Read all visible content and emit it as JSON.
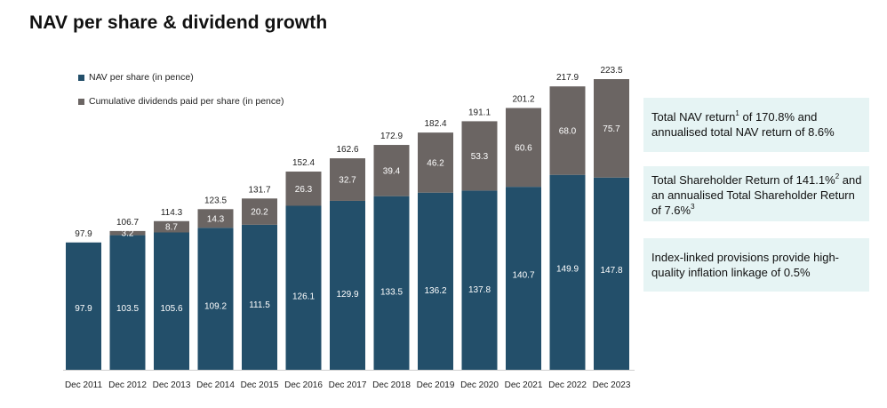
{
  "title": "NAV per share & dividend growth",
  "legend": {
    "nav": "NAV per share (in pence)",
    "dividends": "Cumulative dividends paid per share (in pence)"
  },
  "colors": {
    "nav": "#234f6a",
    "dividends": "#6b6563",
    "box_bg": "#e6f4f4"
  },
  "info_boxes": [
    {
      "text": "Total NAV return",
      "sup": "1",
      "text2": " of 170.8% and annualised total NAV return of 8.6%"
    },
    {
      "text": "Total Shareholder Return of 141.1%",
      "sup": "2",
      "text2": " and an annualised Total Shareholder Return of 7.6%",
      "sup2": "3"
    },
    {
      "text": "Index-linked provisions provide high-quality inflation linkage of 0.5%"
    }
  ],
  "chart_data": {
    "type": "bar",
    "stacked": true,
    "categories": [
      "Dec 2011",
      "Dec 2012",
      "Dec 2013",
      "Dec 2014",
      "Dec 2015",
      "Dec 2016",
      "Dec 2017",
      "Dec 2018",
      "Dec 2019",
      "Dec 2020",
      "Dec 2021",
      "Dec 2022",
      "Dec 2023"
    ],
    "series": [
      {
        "name": "NAV per share (in pence)",
        "values": [
          97.9,
          103.5,
          105.6,
          109.2,
          111.5,
          126.1,
          129.9,
          133.5,
          136.2,
          137.8,
          140.7,
          149.9,
          147.8
        ]
      },
      {
        "name": "Cumulative dividends paid per share (in pence)",
        "values": [
          null,
          3.2,
          8.7,
          14.3,
          20.2,
          26.3,
          32.7,
          39.4,
          46.2,
          53.3,
          60.6,
          68.0,
          75.7
        ]
      }
    ],
    "totals": [
      97.9,
      106.7,
      114.3,
      123.5,
      131.7,
      152.4,
      162.6,
      172.9,
      182.4,
      191.1,
      201.2,
      217.9,
      223.5
    ],
    "ylim": [
      0,
      223.5
    ],
    "grid": false,
    "legend_position": "top-left"
  }
}
